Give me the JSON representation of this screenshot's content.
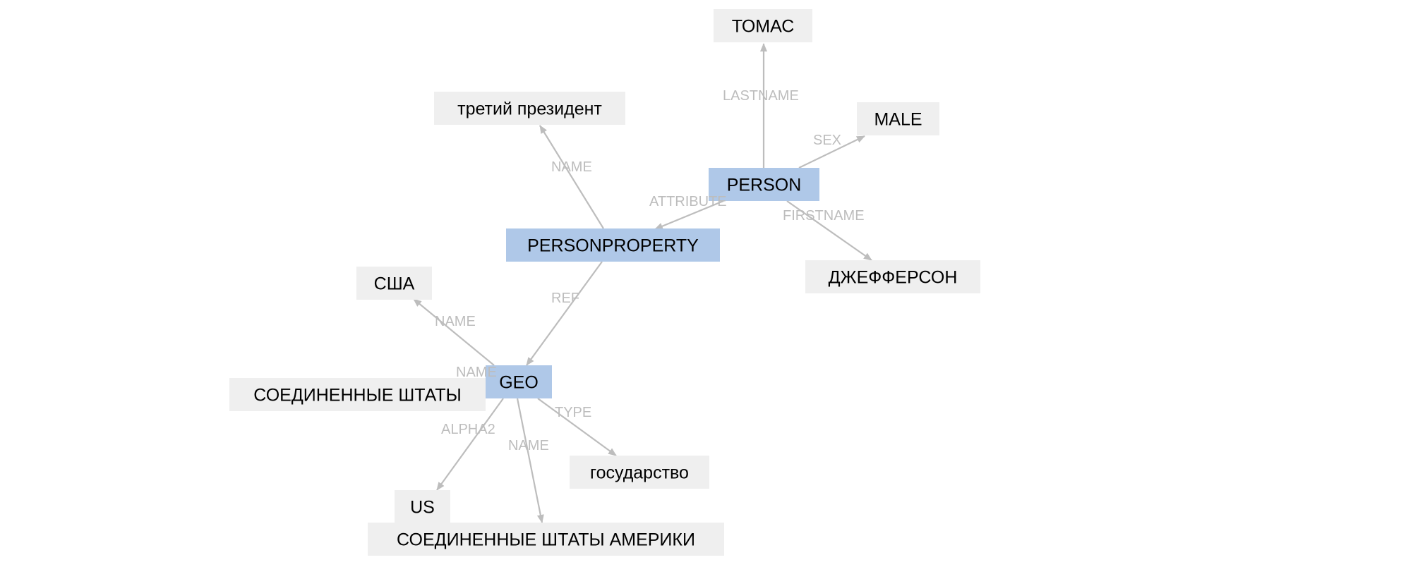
{
  "nodes": [
    {
      "id": "person",
      "label": "PERSON",
      "kind": "entity"
    },
    {
      "id": "personproperty",
      "label": "PERSONPROPERTY",
      "kind": "entity"
    },
    {
      "id": "geo",
      "label": "GEO",
      "kind": "entity"
    },
    {
      "id": "tomac",
      "label": "ТОМАС",
      "kind": "value"
    },
    {
      "id": "male",
      "label": "MALE",
      "kind": "value"
    },
    {
      "id": "jefferson",
      "label": "ДЖЕФФЕРСОН",
      "kind": "value"
    },
    {
      "id": "president",
      "label": "третий президент",
      "kind": "value"
    },
    {
      "id": "usa_short",
      "label": "США",
      "kind": "value"
    },
    {
      "id": "usa_states",
      "label": "СОЕДИНЕННЫЕ ШТАТЫ",
      "kind": "value"
    },
    {
      "id": "gosudarstvo",
      "label": "государство",
      "kind": "value"
    },
    {
      "id": "us",
      "label": "US",
      "kind": "value"
    },
    {
      "id": "usa_full",
      "label": "СОЕДИНЕННЫЕ ШТАТЫ АМЕРИКИ",
      "kind": "value"
    }
  ],
  "edges": [
    {
      "from": "person",
      "to": "tomac",
      "label": "LASTNAME"
    },
    {
      "from": "person",
      "to": "male",
      "label": "SEX"
    },
    {
      "from": "person",
      "to": "jefferson",
      "label": "FIRSTNAME"
    },
    {
      "from": "person",
      "to": "personproperty",
      "label": "ATTRIBUTE"
    },
    {
      "from": "personproperty",
      "to": "president",
      "label": "NAME"
    },
    {
      "from": "personproperty",
      "to": "geo",
      "label": "REF"
    },
    {
      "from": "geo",
      "to": "usa_short",
      "label": "NAME"
    },
    {
      "from": "geo",
      "to": "usa_states",
      "label": "NAME"
    },
    {
      "from": "geo",
      "to": "gosudarstvo",
      "label": "TYPE"
    },
    {
      "from": "geo",
      "to": "us",
      "label": "ALPHA2"
    },
    {
      "from": "geo",
      "to": "usa_full",
      "label": "NAME"
    }
  ],
  "colors": {
    "entity": "#afc8e8",
    "value": "#efefef",
    "edge": "#bdbdbd",
    "edge_label": "#bdbdbd",
    "text": "#000000"
  }
}
